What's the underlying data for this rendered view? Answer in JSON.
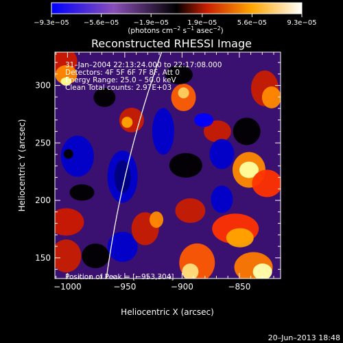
{
  "chart_data": {
    "type": "heatmap",
    "title": "Reconstructed RHESSI Image",
    "xlabel": "Heliocentric X (arcsec)",
    "ylabel": "Heliocentric Y (arcsec)",
    "xlim": [
      -1011,
      -814
    ],
    "ylim": [
      132,
      329
    ],
    "x_ticks": [
      -1000,
      -950,
      -900,
      -850
    ],
    "x_tick_labels": [
      "−1000",
      "−950",
      "−900",
      "−850"
    ],
    "y_ticks": [
      150,
      200,
      250,
      300
    ],
    "y_tick_labels": [
      "150",
      "200",
      "250",
      "300"
    ],
    "colorbar": {
      "vmin": -9.3e-05,
      "vmax": 9.3e-05,
      "ticks": [
        -9.3e-05,
        -5.6e-05,
        -1.9e-05,
        1.9e-05,
        5.6e-05,
        9.3e-05
      ],
      "tick_labels": [
        "−9.3e−05",
        "−5.6e−05",
        "−1.9e−05",
        "1.9e−05",
        "5.6e−05",
        "9.3e−05"
      ],
      "label_prefix": "(photons cm",
      "label_sup1": "−2",
      "label_mid1": " s",
      "label_sup2": "−1",
      "label_mid2": " asec",
      "label_sup3": "−2",
      "label_suffix": ")"
    },
    "annotations": [
      "31–Jan–2004 22:13:24.000 to 22:17:08.000",
      "Detectors: 4F 5F 6F 7F 8F, Att 0",
      "Energy Range: 25.0 – 50.0 keV",
      "Clean     Total counts: 2.97E+03"
    ],
    "peak_label": "Position of Peak = [−953,304]",
    "peak_position": [
      -953,
      304
    ],
    "limb_arc": {
      "center": [
        0,
        0
      ],
      "radius_arcsec": 975,
      "color": "#ffffff"
    },
    "grid": false,
    "legend": "none",
    "colormap": [
      "#0000ff",
      "#5a00c8",
      "#8a4fb8",
      "#000000",
      "#8b0000",
      "#ff3300",
      "#ffa500",
      "#ffffa0",
      "#ffffff"
    ]
  },
  "footer": {
    "timestamp": "20–Jun–2013 18:48"
  }
}
